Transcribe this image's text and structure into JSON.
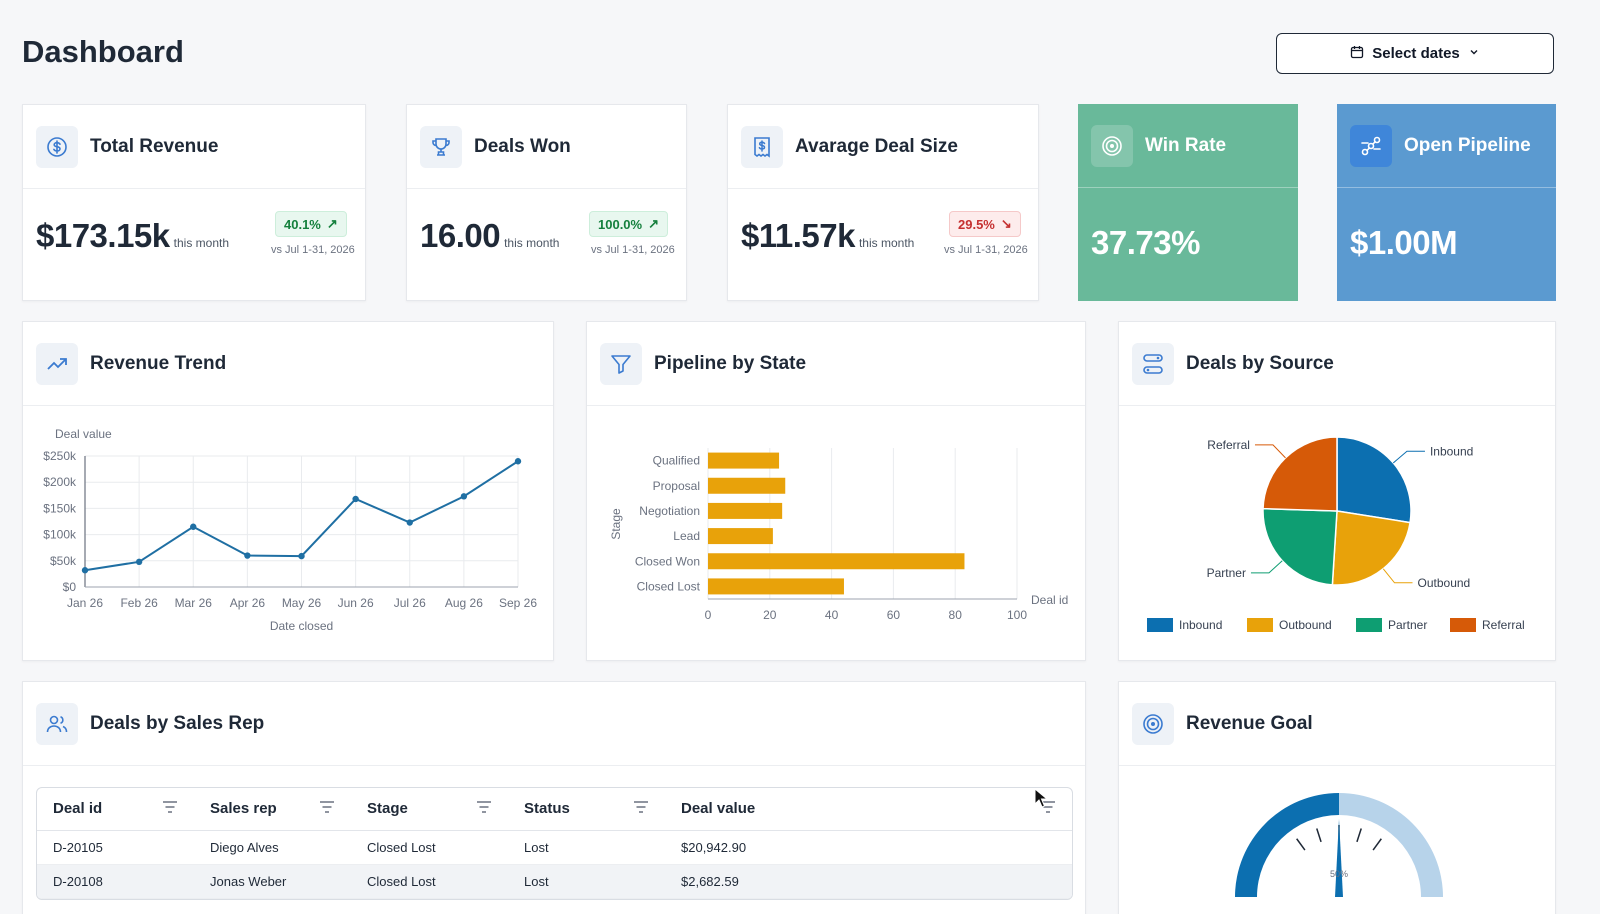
{
  "page": {
    "title": "Dashboard"
  },
  "date_picker": {
    "label": "Select dates"
  },
  "kpis": [
    {
      "title": "Total Revenue",
      "value": "$173.15k",
      "period": "this month",
      "change": "40.1%",
      "trend": "up",
      "compare": "vs Jul 1-31, 2026",
      "icon": "dollar-icon"
    },
    {
      "title": "Deals Won",
      "value": "16.00",
      "period": "this month",
      "change": "100.0%",
      "trend": "up",
      "compare": "vs Jul 1-31, 2026",
      "icon": "trophy-icon"
    },
    {
      "title": "Avarage Deal Size",
      "value": "$11.57k",
      "period": "this month",
      "change": "29.5%",
      "trend": "down",
      "compare": "vs Jul 1-31, 2026",
      "icon": "receipt-icon"
    }
  ],
  "highlight_cards": [
    {
      "title": "Win Rate",
      "value": "37.73%",
      "color": "#69b99a",
      "icon": "target-icon"
    },
    {
      "title": "Open Pipeline",
      "value": "$1.00M",
      "color": "#5b9ad0",
      "icon": "pipeline-icon"
    }
  ],
  "sections": {
    "revenue_trend": "Revenue Trend",
    "pipeline": "Pipeline by State",
    "sources": "Deals by Source",
    "sales_rep": "Deals by Sales Rep",
    "goal": "Revenue Goal"
  },
  "chart_data": [
    {
      "type": "line",
      "ylabel": "Deal value",
      "xlabel": "Date closed",
      "categories": [
        "Jan 26",
        "Feb 26",
        "Mar 26",
        "Apr 26",
        "May 26",
        "Jun 26",
        "Jul 26",
        "Aug 26",
        "Sep 26"
      ],
      "values": [
        32000,
        48000,
        115000,
        60000,
        59000,
        168000,
        123000,
        173000,
        240000
      ],
      "yticks": [
        "$0",
        "$50k",
        "$100k",
        "$150k",
        "$200k",
        "$250k"
      ],
      "ylim": [
        0,
        250000
      ],
      "grid": true,
      "color": "#1f6fa3"
    },
    {
      "type": "bar",
      "orientation": "horizontal",
      "ylabel": "Stage",
      "xlabel": "Deal id",
      "categories": [
        "Qualified",
        "Proposal",
        "Negotiation",
        "Lead",
        "Closed Won",
        "Closed Lost"
      ],
      "values": [
        23,
        25,
        24,
        21,
        83,
        44
      ],
      "xticks": [
        "0",
        "20",
        "40",
        "60",
        "80",
        "100"
      ],
      "xlim": [
        0,
        100
      ],
      "grid": true,
      "color": "#e8a20a"
    },
    {
      "type": "pie",
      "categories": [
        "Inbound",
        "Outbound",
        "Partner",
        "Referral"
      ],
      "values": [
        27.5,
        23.5,
        24.5,
        24.5
      ],
      "colors": [
        "#0c6fb0",
        "#e8a20a",
        "#0e9e72",
        "#d65a08"
      ],
      "legend": "bottom"
    }
  ],
  "table": {
    "columns": [
      "Deal id",
      "Sales rep",
      "Stage",
      "Status",
      "Deal value"
    ],
    "rows": [
      [
        "D-20105",
        "Diego Alves",
        "Closed Lost",
        "Lost",
        "$20,942.90"
      ],
      [
        "D-20108",
        "Jonas Weber",
        "Closed Lost",
        "Lost",
        "$2,682.59"
      ]
    ]
  },
  "gauge": {
    "value": 0.5,
    "label": "50%",
    "fill": "#0c6fb0",
    "track": "#b7d3ea"
  }
}
